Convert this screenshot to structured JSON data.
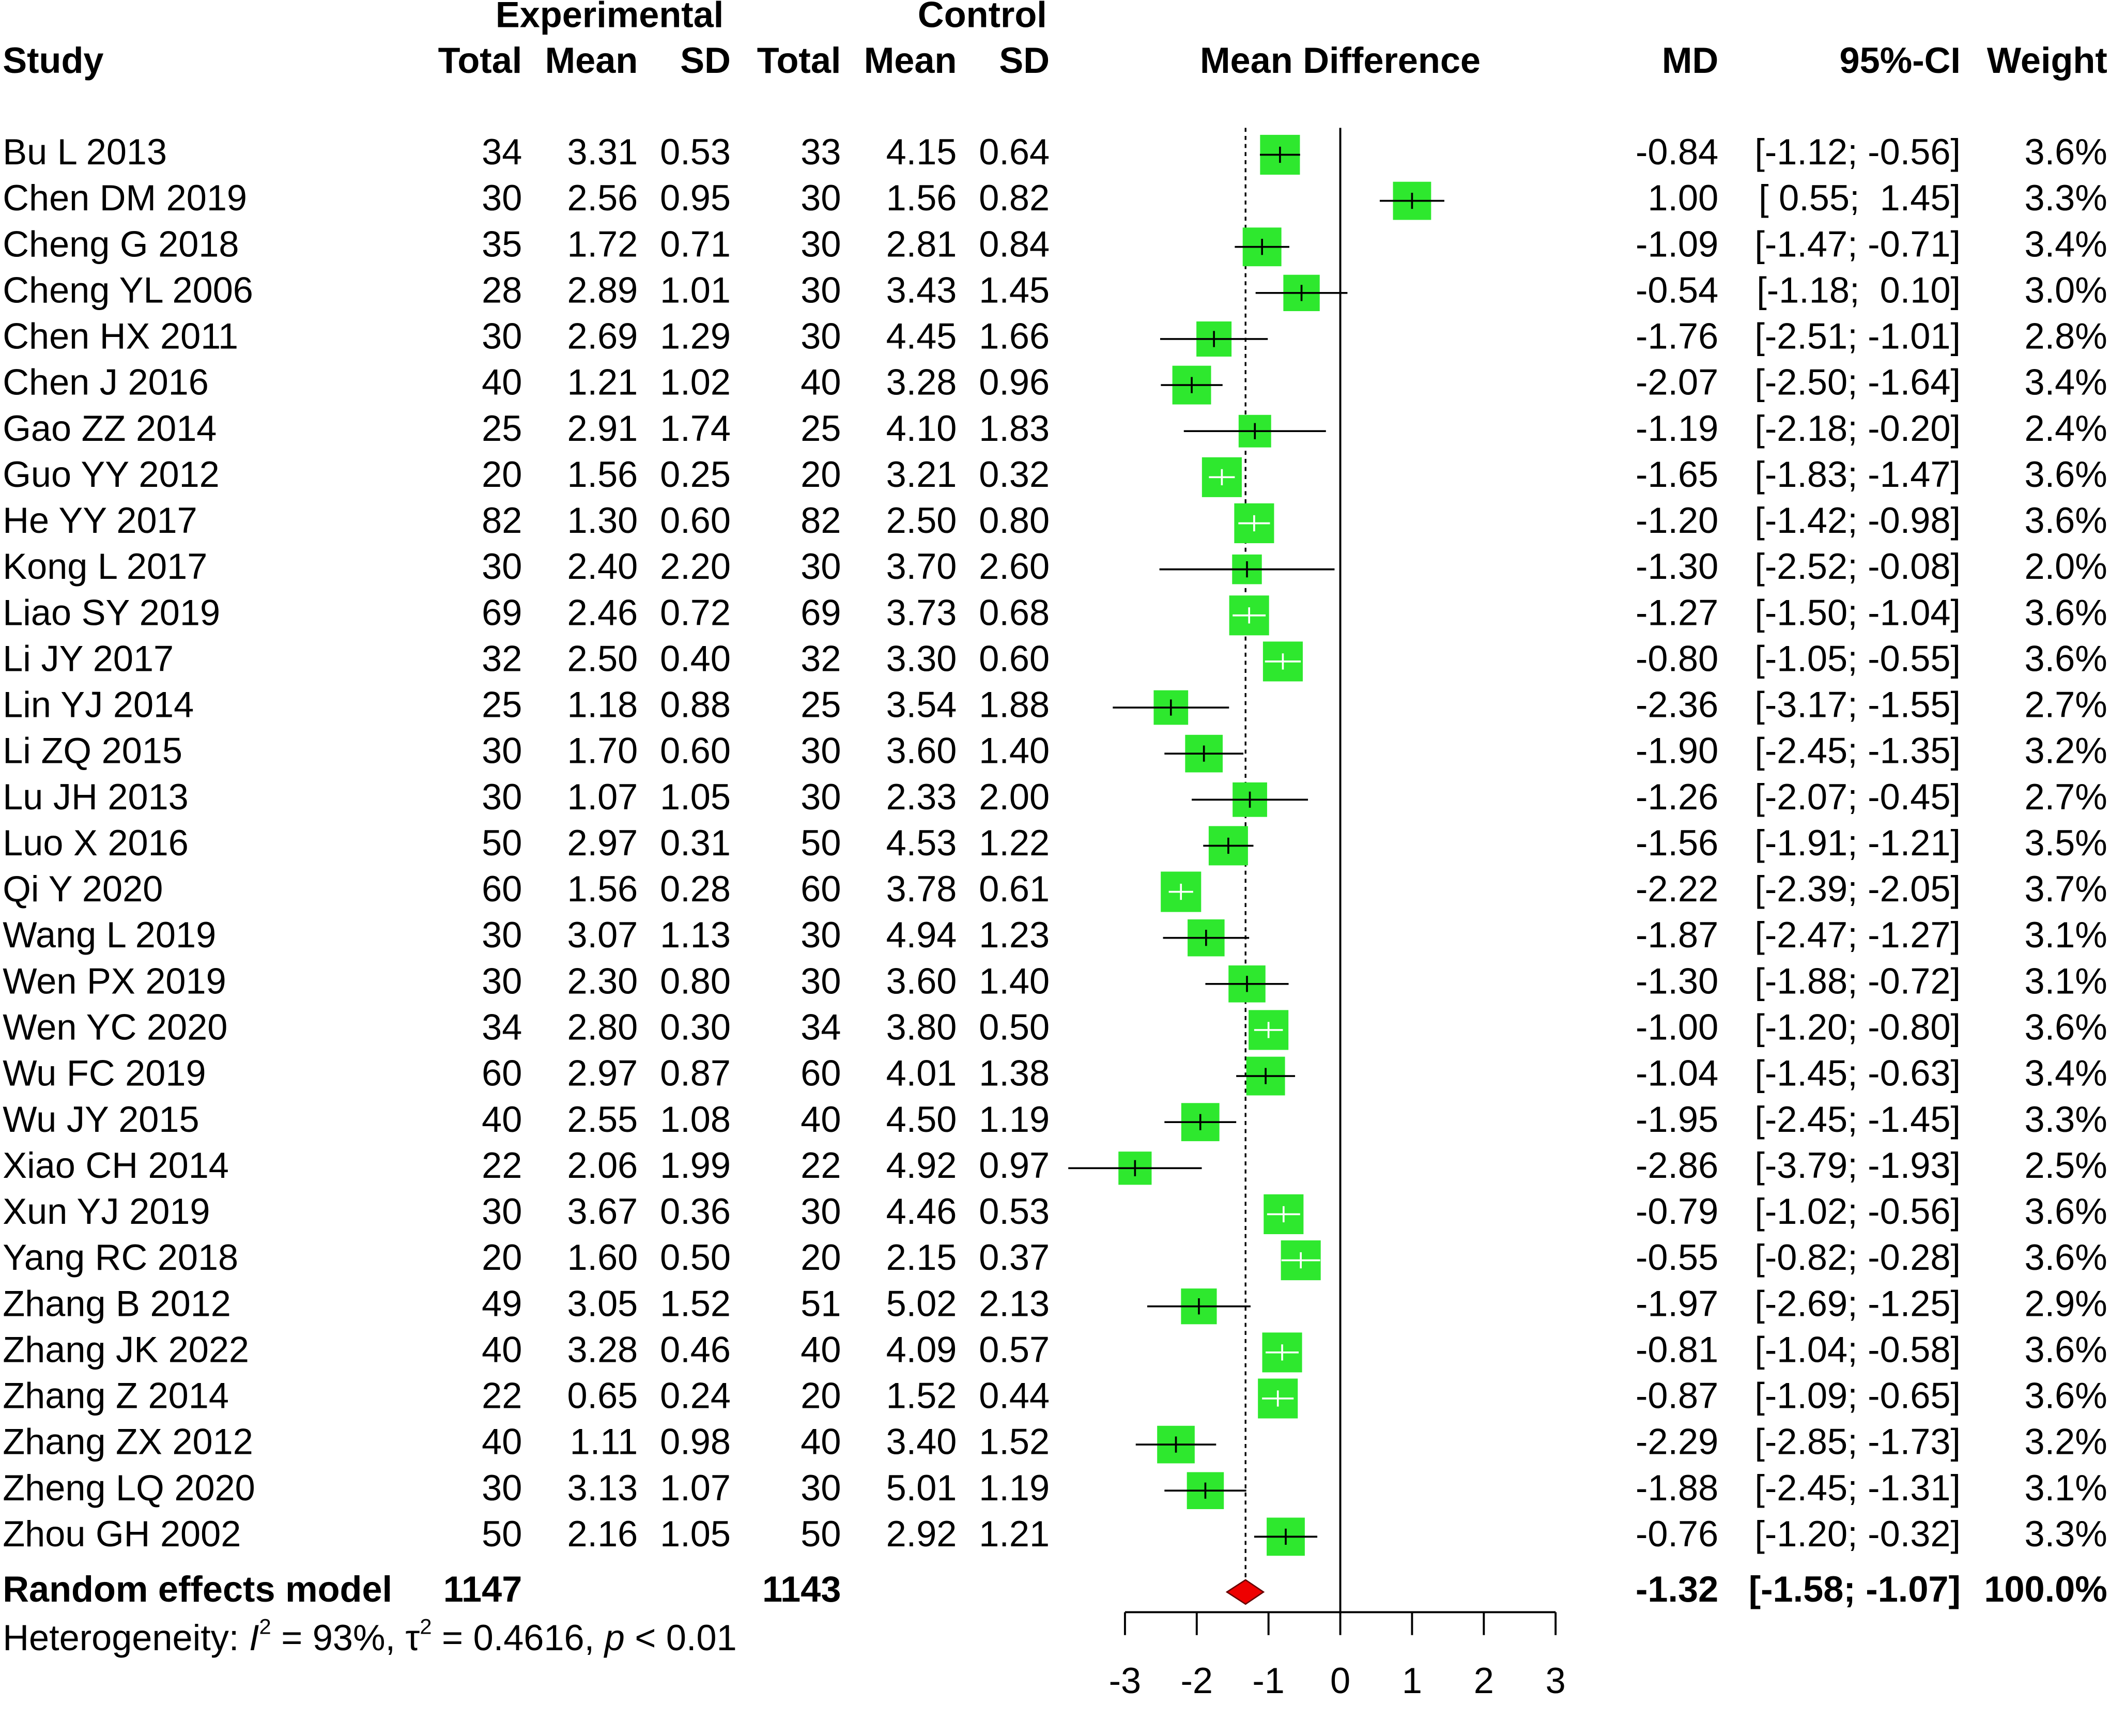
{
  "chart_data": {
    "type": "forest",
    "column_groups": [
      "Experimental",
      "Control"
    ],
    "columns": [
      "Study",
      "Total",
      "Mean",
      "SD",
      "Total",
      "Mean",
      "SD",
      "Mean Difference",
      "MD",
      "95%-CI",
      "Weight"
    ],
    "box_color": "#2ee82e",
    "diamond_color": "#ee0000",
    "xlim": [
      -3,
      3
    ],
    "xticks": [
      -3,
      -2,
      -1,
      0,
      1,
      2,
      3
    ],
    "reference_line": 0,
    "studies": [
      {
        "name": "Bu L 2013",
        "cells": [
          "34",
          "3.31",
          "0.53",
          "33",
          "4.15",
          "0.64"
        ],
        "md": -0.84,
        "md_label": "-0.84",
        "ci_lower": -1.12,
        "ci_upper": -0.56,
        "ci_label": "[-1.12; -0.56]",
        "weight": 3.6,
        "weight_label": "3.6%"
      },
      {
        "name": "Chen DM 2019",
        "cells": [
          "30",
          "2.56",
          "0.95",
          "30",
          "1.56",
          "0.82"
        ],
        "md": 1.0,
        "md_label": "1.00",
        "ci_lower": 0.55,
        "ci_upper": 1.45,
        "ci_label": "[ 0.55;  1.45]",
        "weight": 3.3,
        "weight_label": "3.3%"
      },
      {
        "name": "Cheng G 2018",
        "cells": [
          "35",
          "1.72",
          "0.71",
          "30",
          "2.81",
          "0.84"
        ],
        "md": -1.09,
        "md_label": "-1.09",
        "ci_lower": -1.47,
        "ci_upper": -0.71,
        "ci_label": "[-1.47; -0.71]",
        "weight": 3.4,
        "weight_label": "3.4%"
      },
      {
        "name": "Cheng YL 2006",
        "cells": [
          "28",
          "2.89",
          "1.01",
          "30",
          "3.43",
          "1.45"
        ],
        "md": -0.54,
        "md_label": "-0.54",
        "ci_lower": -1.18,
        "ci_upper": 0.1,
        "ci_label": "[-1.18;  0.10]",
        "weight": 3.0,
        "weight_label": "3.0%"
      },
      {
        "name": "Chen HX 2011",
        "cells": [
          "30",
          "2.69",
          "1.29",
          "30",
          "4.45",
          "1.66"
        ],
        "md": -1.76,
        "md_label": "-1.76",
        "ci_lower": -2.51,
        "ci_upper": -1.01,
        "ci_label": "[-2.51; -1.01]",
        "weight": 2.8,
        "weight_label": "2.8%"
      },
      {
        "name": "Chen J 2016",
        "cells": [
          "40",
          "1.21",
          "1.02",
          "40",
          "3.28",
          "0.96"
        ],
        "md": -2.07,
        "md_label": "-2.07",
        "ci_lower": -2.5,
        "ci_upper": -1.64,
        "ci_label": "[-2.50; -1.64]",
        "weight": 3.4,
        "weight_label": "3.4%"
      },
      {
        "name": "Gao ZZ 2014",
        "cells": [
          "25",
          "2.91",
          "1.74",
          "25",
          "4.10",
          "1.83"
        ],
        "md": -1.19,
        "md_label": "-1.19",
        "ci_lower": -2.18,
        "ci_upper": -0.2,
        "ci_label": "[-2.18; -0.20]",
        "weight": 2.4,
        "weight_label": "2.4%"
      },
      {
        "name": "Guo YY 2012",
        "cells": [
          "20",
          "1.56",
          "0.25",
          "20",
          "3.21",
          "0.32"
        ],
        "md": -1.65,
        "md_label": "-1.65",
        "ci_lower": -1.83,
        "ci_upper": -1.47,
        "ci_label": "[-1.83; -1.47]",
        "weight": 3.6,
        "weight_label": "3.6%"
      },
      {
        "name": "He YY 2017",
        "cells": [
          "82",
          "1.30",
          "0.60",
          "82",
          "2.50",
          "0.80"
        ],
        "md": -1.2,
        "md_label": "-1.20",
        "ci_lower": -1.42,
        "ci_upper": -0.98,
        "ci_label": "[-1.42; -0.98]",
        "weight": 3.6,
        "weight_label": "3.6%"
      },
      {
        "name": "Kong L 2017",
        "cells": [
          "30",
          "2.40",
          "2.20",
          "30",
          "3.70",
          "2.60"
        ],
        "md": -1.3,
        "md_label": "-1.30",
        "ci_lower": -2.52,
        "ci_upper": -0.08,
        "ci_label": "[-2.52; -0.08]",
        "weight": 2.0,
        "weight_label": "2.0%"
      },
      {
        "name": "Liao SY 2019",
        "cells": [
          "69",
          "2.46",
          "0.72",
          "69",
          "3.73",
          "0.68"
        ],
        "md": -1.27,
        "md_label": "-1.27",
        "ci_lower": -1.5,
        "ci_upper": -1.04,
        "ci_label": "[-1.50; -1.04]",
        "weight": 3.6,
        "weight_label": "3.6%"
      },
      {
        "name": "Li JY 2017",
        "cells": [
          "32",
          "2.50",
          "0.40",
          "32",
          "3.30",
          "0.60"
        ],
        "md": -0.8,
        "md_label": "-0.80",
        "ci_lower": -1.05,
        "ci_upper": -0.55,
        "ci_label": "[-1.05; -0.55]",
        "weight": 3.6,
        "weight_label": "3.6%"
      },
      {
        "name": "Lin YJ 2014",
        "cells": [
          "25",
          "1.18",
          "0.88",
          "25",
          "3.54",
          "1.88"
        ],
        "md": -2.36,
        "md_label": "-2.36",
        "ci_lower": -3.17,
        "ci_upper": -1.55,
        "ci_label": "[-3.17; -1.55]",
        "weight": 2.7,
        "weight_label": "2.7%"
      },
      {
        "name": "Li ZQ 2015",
        "cells": [
          "30",
          "1.70",
          "0.60",
          "30",
          "3.60",
          "1.40"
        ],
        "md": -1.9,
        "md_label": "-1.90",
        "ci_lower": -2.45,
        "ci_upper": -1.35,
        "ci_label": "[-2.45; -1.35]",
        "weight": 3.2,
        "weight_label": "3.2%"
      },
      {
        "name": "Lu JH 2013",
        "cells": [
          "30",
          "1.07",
          "1.05",
          "30",
          "2.33",
          "2.00"
        ],
        "md": -1.26,
        "md_label": "-1.26",
        "ci_lower": -2.07,
        "ci_upper": -0.45,
        "ci_label": "[-2.07; -0.45]",
        "weight": 2.7,
        "weight_label": "2.7%"
      },
      {
        "name": "Luo X 2016",
        "cells": [
          "50",
          "2.97",
          "0.31",
          "50",
          "4.53",
          "1.22"
        ],
        "md": -1.56,
        "md_label": "-1.56",
        "ci_lower": -1.91,
        "ci_upper": -1.21,
        "ci_label": "[-1.91; -1.21]",
        "weight": 3.5,
        "weight_label": "3.5%"
      },
      {
        "name": "Qi Y 2020",
        "cells": [
          "60",
          "1.56",
          "0.28",
          "60",
          "3.78",
          "0.61"
        ],
        "md": -2.22,
        "md_label": "-2.22",
        "ci_lower": -2.39,
        "ci_upper": -2.05,
        "ci_label": "[-2.39; -2.05]",
        "weight": 3.7,
        "weight_label": "3.7%"
      },
      {
        "name": "Wang L 2019",
        "cells": [
          "30",
          "3.07",
          "1.13",
          "30",
          "4.94",
          "1.23"
        ],
        "md": -1.87,
        "md_label": "-1.87",
        "ci_lower": -2.47,
        "ci_upper": -1.27,
        "ci_label": "[-2.47; -1.27]",
        "weight": 3.1,
        "weight_label": "3.1%"
      },
      {
        "name": "Wen PX 2019",
        "cells": [
          "30",
          "2.30",
          "0.80",
          "30",
          "3.60",
          "1.40"
        ],
        "md": -1.3,
        "md_label": "-1.30",
        "ci_lower": -1.88,
        "ci_upper": -0.72,
        "ci_label": "[-1.88; -0.72]",
        "weight": 3.1,
        "weight_label": "3.1%"
      },
      {
        "name": "Wen YC 2020",
        "cells": [
          "34",
          "2.80",
          "0.30",
          "34",
          "3.80",
          "0.50"
        ],
        "md": -1.0,
        "md_label": "-1.00",
        "ci_lower": -1.2,
        "ci_upper": -0.8,
        "ci_label": "[-1.20; -0.80]",
        "weight": 3.6,
        "weight_label": "3.6%"
      },
      {
        "name": "Wu FC 2019",
        "cells": [
          "60",
          "2.97",
          "0.87",
          "60",
          "4.01",
          "1.38"
        ],
        "md": -1.04,
        "md_label": "-1.04",
        "ci_lower": -1.45,
        "ci_upper": -0.63,
        "ci_label": "[-1.45; -0.63]",
        "weight": 3.4,
        "weight_label": "3.4%"
      },
      {
        "name": "Wu JY 2015",
        "cells": [
          "40",
          "2.55",
          "1.08",
          "40",
          "4.50",
          "1.19"
        ],
        "md": -1.95,
        "md_label": "-1.95",
        "ci_lower": -2.45,
        "ci_upper": -1.45,
        "ci_label": "[-2.45; -1.45]",
        "weight": 3.3,
        "weight_label": "3.3%"
      },
      {
        "name": "Xiao CH 2014",
        "cells": [
          "22",
          "2.06",
          "1.99",
          "22",
          "4.92",
          "0.97"
        ],
        "md": -2.86,
        "md_label": "-2.86",
        "ci_lower": -3.79,
        "ci_upper": -1.93,
        "ci_label": "[-3.79; -1.93]",
        "weight": 2.5,
        "weight_label": "2.5%"
      },
      {
        "name": "Xun YJ 2019",
        "cells": [
          "30",
          "3.67",
          "0.36",
          "30",
          "4.46",
          "0.53"
        ],
        "md": -0.79,
        "md_label": "-0.79",
        "ci_lower": -1.02,
        "ci_upper": -0.56,
        "ci_label": "[-1.02; -0.56]",
        "weight": 3.6,
        "weight_label": "3.6%"
      },
      {
        "name": "Yang RC 2018",
        "cells": [
          "20",
          "1.60",
          "0.50",
          "20",
          "2.15",
          "0.37"
        ],
        "md": -0.55,
        "md_label": "-0.55",
        "ci_lower": -0.82,
        "ci_upper": -0.28,
        "ci_label": "[-0.82; -0.28]",
        "weight": 3.6,
        "weight_label": "3.6%"
      },
      {
        "name": "Zhang B 2012",
        "cells": [
          "49",
          "3.05",
          "1.52",
          "51",
          "5.02",
          "2.13"
        ],
        "md": -1.97,
        "md_label": "-1.97",
        "ci_lower": -2.69,
        "ci_upper": -1.25,
        "ci_label": "[-2.69; -1.25]",
        "weight": 2.9,
        "weight_label": "2.9%"
      },
      {
        "name": "Zhang JK 2022",
        "cells": [
          "40",
          "3.28",
          "0.46",
          "40",
          "4.09",
          "0.57"
        ],
        "md": -0.81,
        "md_label": "-0.81",
        "ci_lower": -1.04,
        "ci_upper": -0.58,
        "ci_label": "[-1.04; -0.58]",
        "weight": 3.6,
        "weight_label": "3.6%"
      },
      {
        "name": "Zhang Z 2014",
        "cells": [
          "22",
          "0.65",
          "0.24",
          "20",
          "1.52",
          "0.44"
        ],
        "md": -0.87,
        "md_label": "-0.87",
        "ci_lower": -1.09,
        "ci_upper": -0.65,
        "ci_label": "[-1.09; -0.65]",
        "weight": 3.6,
        "weight_label": "3.6%"
      },
      {
        "name": "Zhang ZX 2012",
        "cells": [
          "40",
          "1.11",
          "0.98",
          "40",
          "3.40",
          "1.52"
        ],
        "md": -2.29,
        "md_label": "-2.29",
        "ci_lower": -2.85,
        "ci_upper": -1.73,
        "ci_label": "[-2.85; -1.73]",
        "weight": 3.2,
        "weight_label": "3.2%"
      },
      {
        "name": "Zheng LQ 2020",
        "cells": [
          "30",
          "3.13",
          "1.07",
          "30",
          "5.01",
          "1.19"
        ],
        "md": -1.88,
        "md_label": "-1.88",
        "ci_lower": -2.45,
        "ci_upper": -1.31,
        "ci_label": "[-2.45; -1.31]",
        "weight": 3.1,
        "weight_label": "3.1%"
      },
      {
        "name": "Zhou GH 2002",
        "cells": [
          "50",
          "2.16",
          "1.05",
          "50",
          "2.92",
          "1.21"
        ],
        "md": -0.76,
        "md_label": "-0.76",
        "ci_lower": -1.2,
        "ci_upper": -0.32,
        "ci_label": "[-1.20; -0.32]",
        "weight": 3.3,
        "weight_label": "3.3%"
      }
    ],
    "pooled": {
      "name": "Random effects model",
      "exp_total": "1147",
      "ctrl_total": "1143",
      "md": -1.32,
      "md_label": "-1.32",
      "ci_lower": -1.58,
      "ci_upper": -1.07,
      "ci_label": "[-1.58; -1.07]",
      "weight": 100.0,
      "weight_label": "100.0%"
    },
    "heterogeneity": [
      "Heterogeneity: ",
      "I",
      "2",
      " = 93%, ",
      "τ",
      "2",
      " = 0.4616, ",
      "p",
      " < 0.01"
    ]
  }
}
